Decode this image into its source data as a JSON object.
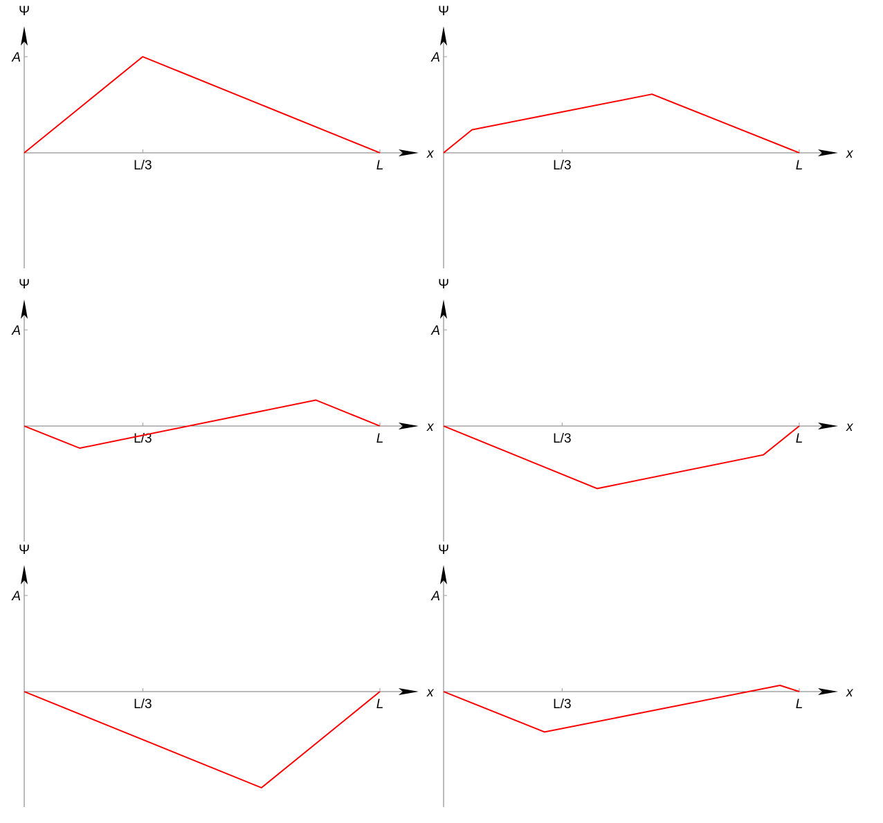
{
  "chart_data": [
    {
      "type": "line",
      "ylabel": "Ψ",
      "xlabel": "x",
      "y_tick_label": "A",
      "x_tick_labels": [
        "L/3",
        "L"
      ],
      "xlim": [
        0,
        1
      ],
      "ylim": [
        -1.2,
        1.2
      ],
      "line_color": "#ff0000",
      "x": [
        0,
        0.333,
        1
      ],
      "y": [
        0,
        1,
        0
      ]
    },
    {
      "type": "line",
      "ylabel": "Ψ",
      "xlabel": "x",
      "y_tick_label": "A",
      "x_tick_labels": [
        "L/3",
        "L"
      ],
      "xlim": [
        0,
        1
      ],
      "ylim": [
        -1.2,
        1.2
      ],
      "line_color": "#ff0000",
      "x": [
        0,
        0.08,
        0.586,
        1
      ],
      "y": [
        0,
        0.24,
        0.61,
        0
      ]
    },
    {
      "type": "line",
      "ylabel": "Ψ",
      "xlabel": "x",
      "y_tick_label": "A",
      "x_tick_labels": [
        "L/3",
        "L"
      ],
      "xlim": [
        0,
        1
      ],
      "ylim": [
        -1.2,
        1.2
      ],
      "line_color": "#ff0000",
      "x": [
        0,
        0.156,
        0.82,
        1
      ],
      "y": [
        0,
        -0.23,
        0.27,
        0
      ]
    },
    {
      "type": "line",
      "ylabel": "Ψ",
      "xlabel": "x",
      "y_tick_label": "A",
      "x_tick_labels": [
        "L/3",
        "L"
      ],
      "xlim": [
        0,
        1
      ],
      "ylim": [
        -1.2,
        1.2
      ],
      "line_color": "#ff0000",
      "x": [
        0,
        0.432,
        0.899,
        1
      ],
      "y": [
        0,
        -0.65,
        -0.3,
        0
      ]
    },
    {
      "type": "line",
      "ylabel": "Ψ",
      "xlabel": "x",
      "y_tick_label": "A",
      "x_tick_labels": [
        "L/3",
        "L"
      ],
      "xlim": [
        0,
        1
      ],
      "ylim": [
        -1.2,
        1.2
      ],
      "line_color": "#ff0000",
      "x": [
        0,
        0.667,
        1
      ],
      "y": [
        0,
        -1,
        0
      ]
    },
    {
      "type": "line",
      "ylabel": "Ψ",
      "xlabel": "x",
      "y_tick_label": "A",
      "x_tick_labels": [
        "L/3",
        "L"
      ],
      "xlim": [
        0,
        1
      ],
      "ylim": [
        -1.2,
        1.2
      ],
      "line_color": "#ff0000",
      "x": [
        0,
        0.284,
        0.946,
        1
      ],
      "y": [
        0,
        -0.42,
        0.065,
        0
      ]
    }
  ]
}
